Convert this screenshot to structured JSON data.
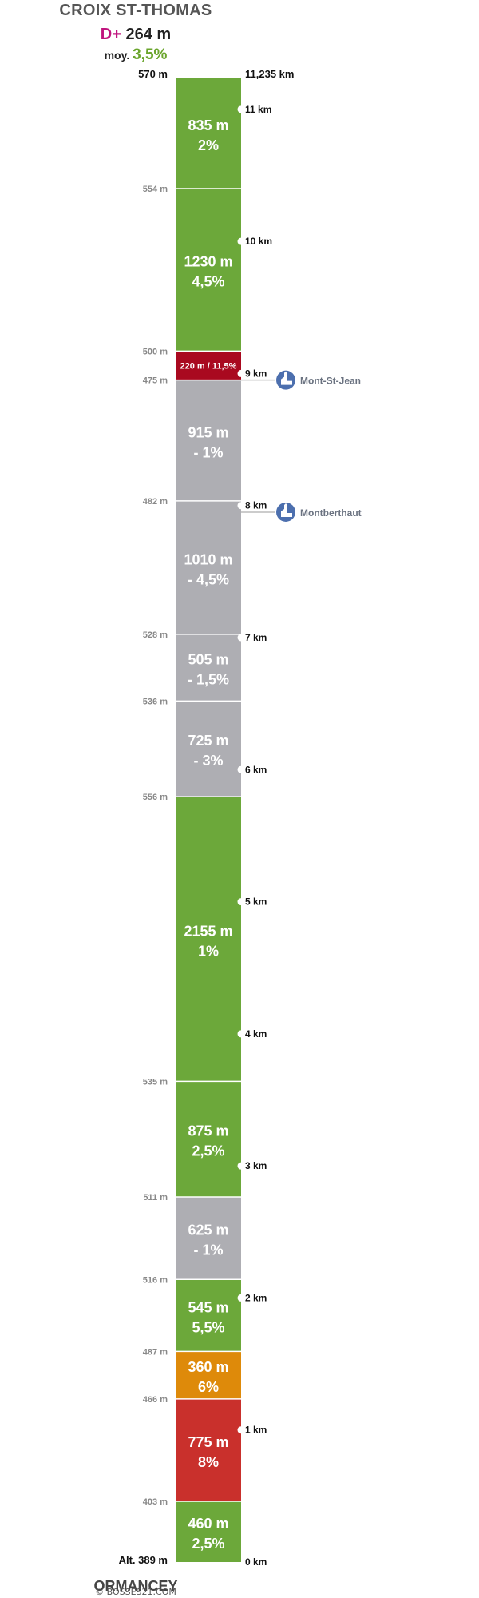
{
  "header": {
    "climb_name": "CROIX ST-THOMAS",
    "dplus_label": "D+",
    "dplus_value": "264 m",
    "moy_label": "moy.",
    "moy_value": "3,5%"
  },
  "footer": {
    "start_name": "ORMANCEY",
    "credit": "© BOSSES21.COM"
  },
  "colors": {
    "green": "#6ca83a",
    "gray": "#aeaeb3",
    "dark_red": "#a9091f",
    "orange": "#de8a0a",
    "red": "#c9302c",
    "town_icon": "#4c6fae",
    "altitude_label": "#888888",
    "km_label": "#111111"
  },
  "profile": {
    "total_km": 11.235,
    "start_altitude_label": "Alt. 389 m",
    "top_altitude_label": "570 m",
    "top_km_label": "11,235 km",
    "segments": [
      {
        "length": "460 m",
        "grade": "2,5%",
        "length_m": 460,
        "color": "green"
      },
      {
        "length": "775 m",
        "grade": "8%",
        "length_m": 775,
        "color": "red"
      },
      {
        "length": "360 m",
        "grade": "6%",
        "length_m": 360,
        "color": "orange"
      },
      {
        "length": "545 m",
        "grade": "5,5%",
        "length_m": 545,
        "color": "green"
      },
      {
        "length": "625 m",
        "grade": "- 1%",
        "length_m": 625,
        "color": "gray"
      },
      {
        "length": "875 m",
        "grade": "2,5%",
        "length_m": 875,
        "color": "green"
      },
      {
        "length": "2155 m",
        "grade": "1%",
        "length_m": 2155,
        "color": "green"
      },
      {
        "length": "725 m",
        "grade": "- 3%",
        "length_m": 725,
        "color": "gray"
      },
      {
        "length": "505 m",
        "grade": "- 1,5%",
        "length_m": 505,
        "color": "gray"
      },
      {
        "length": "1010 m",
        "grade": "- 4,5%",
        "length_m": 1010,
        "color": "gray"
      },
      {
        "length": "915 m",
        "grade": "- 1%",
        "length_m": 915,
        "color": "gray"
      },
      {
        "label": "220 m / 11,5%",
        "length_m": 220,
        "color": "dark_red"
      },
      {
        "length": "1230 m",
        "grade": "4,5%",
        "length_m": 1230,
        "color": "green"
      },
      {
        "length": "835 m",
        "grade": "2%",
        "length_m": 835,
        "color": "green"
      }
    ],
    "altitudes_at_boundaries": [
      "403 m",
      "466 m",
      "487 m",
      "516 m",
      "511 m",
      "535 m",
      "556 m",
      "536 m",
      "528 m",
      "482 m",
      "475 m",
      "500 m",
      "554 m"
    ],
    "km_markers": [
      "0 km",
      "1 km",
      "2 km",
      "3 km",
      "4 km",
      "5 km",
      "6 km",
      "7 km",
      "8 km",
      "9 km",
      "10 km",
      "11 km"
    ],
    "towns": [
      {
        "name": "Mont-St-Jean",
        "km": 8.95,
        "icon": "church-icon"
      },
      {
        "name": "Montberthaut",
        "km": 7.95,
        "icon": "church-icon"
      }
    ]
  }
}
